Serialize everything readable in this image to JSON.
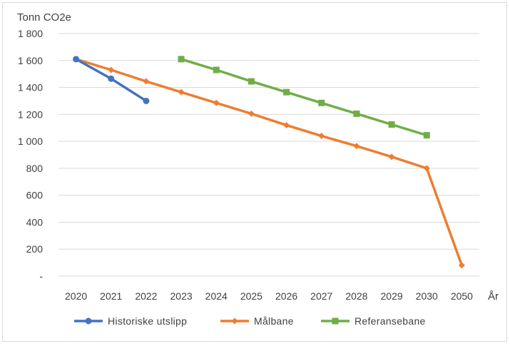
{
  "chart_data": {
    "type": "line",
    "ylabel": "Tonn CO2e",
    "xlabel": "År",
    "categories": [
      "2020",
      "2021",
      "2022",
      "2023",
      "2024",
      "2025",
      "2026",
      "2027",
      "2028",
      "2029",
      "2030",
      "2050"
    ],
    "ylim": [
      0,
      1800
    ],
    "yticks": [
      {
        "value": 0,
        "label": "-"
      },
      {
        "value": 200,
        "label": "200"
      },
      {
        "value": 400,
        "label": "400"
      },
      {
        "value": 600,
        "label": "600"
      },
      {
        "value": 800,
        "label": "800"
      },
      {
        "value": 1000,
        "label": "1 000"
      },
      {
        "value": 1200,
        "label": "1 200"
      },
      {
        "value": 1400,
        "label": "1 400"
      },
      {
        "value": 1600,
        "label": "1 600"
      },
      {
        "value": 1800,
        "label": "1 800"
      }
    ],
    "grid": "horizontal",
    "legend": "bottom",
    "series": [
      {
        "name": "Historiske utslipp",
        "color": "#4472C4",
        "marker": "circle",
        "values": [
          1610,
          1465,
          1300,
          null,
          null,
          null,
          null,
          null,
          null,
          null,
          null,
          null
        ]
      },
      {
        "name": "Målbane",
        "color": "#ED7D31",
        "marker": "diamond",
        "values": [
          1610,
          1530,
          1445,
          1365,
          1285,
          1205,
          1120,
          1040,
          965,
          885,
          800,
          80
        ]
      },
      {
        "name": "Referansebane",
        "color": "#70AD47",
        "marker": "square",
        "values": [
          null,
          null,
          null,
          1610,
          1530,
          1445,
          1365,
          1285,
          1205,
          1125,
          1045,
          null
        ]
      }
    ]
  }
}
